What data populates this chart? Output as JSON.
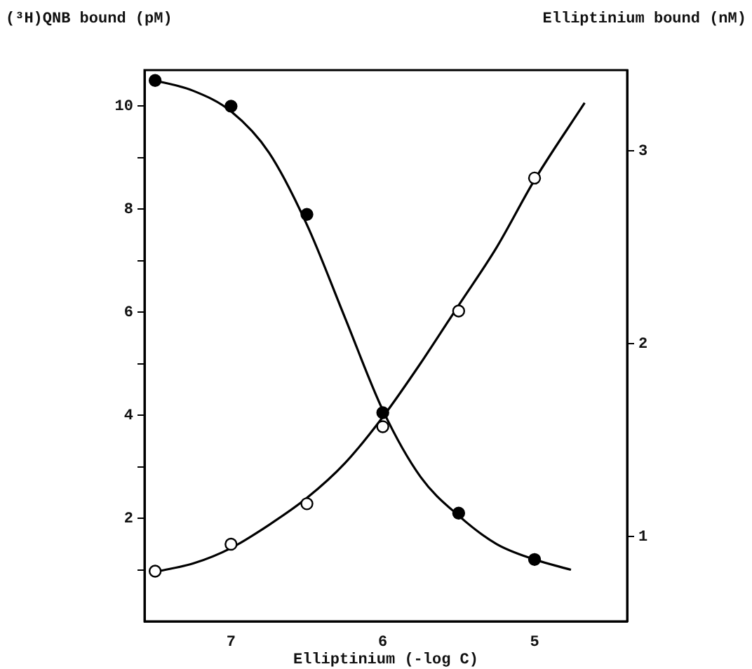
{
  "chart_data": {
    "type": "scatter",
    "xlabel": "Elliptinium (-log C)",
    "ylabel": "(³H)QNB bound (pM)",
    "y2label": "Elliptinium bound (nM)",
    "xlim": [
      7.57,
      4.39
    ],
    "xticks": [
      7,
      6,
      5
    ],
    "ylim": [
      0,
      10.7
    ],
    "yticks": [
      {
        "value": 1,
        "label": null
      },
      2,
      {
        "value": 3,
        "label": null
      },
      4,
      {
        "value": 5,
        "label": null
      },
      6,
      {
        "value": 7,
        "label": null
      },
      8,
      {
        "value": 9,
        "label": null
      },
      10
    ],
    "y2lim": [
      0.56,
      3.42
    ],
    "y2ticks": [
      1,
      2,
      3
    ],
    "grid": false,
    "legend": false,
    "series": [
      {
        "type": "scatter",
        "color": "#000000",
        "marker": "circle",
        "x": [
          7.5,
          7,
          6.5,
          6,
          5.5,
          5
        ],
        "values": [
          10.5,
          10,
          7.9,
          4.05,
          2.1,
          1.2
        ]
      },
      {
        "type": "scatter",
        "color": "#ffffff",
        "marker": "circle",
        "axis": "y2",
        "x": [
          7.5,
          7,
          6.5,
          6,
          5.5,
          5
        ],
        "values": [
          0.82,
          0.96,
          1.17,
          1.57,
          2.17,
          2.86
        ]
      },
      {
        "type": "line",
        "color": "#000000",
        "marker": "none",
        "x": [
          7.5,
          7.25,
          7,
          6.75,
          6.5,
          6.25,
          6,
          5.75,
          5.5,
          5.25,
          5,
          4.76
        ],
        "values": [
          10.5,
          10.3,
          9.9,
          9.1,
          7.7,
          5.9,
          4.1,
          2.8,
          2.05,
          1.5,
          1.2,
          1.0
        ]
      },
      {
        "type": "line",
        "color": "#000000",
        "marker": "none",
        "axis": "y2",
        "x": [
          7.48,
          7.25,
          7,
          6.75,
          6.5,
          6.25,
          6,
          5.75,
          5.5,
          5.25,
          5,
          4.67
        ],
        "values": [
          0.82,
          0.86,
          0.94,
          1.06,
          1.2,
          1.38,
          1.62,
          1.9,
          2.2,
          2.5,
          2.85,
          3.25
        ]
      }
    ]
  }
}
